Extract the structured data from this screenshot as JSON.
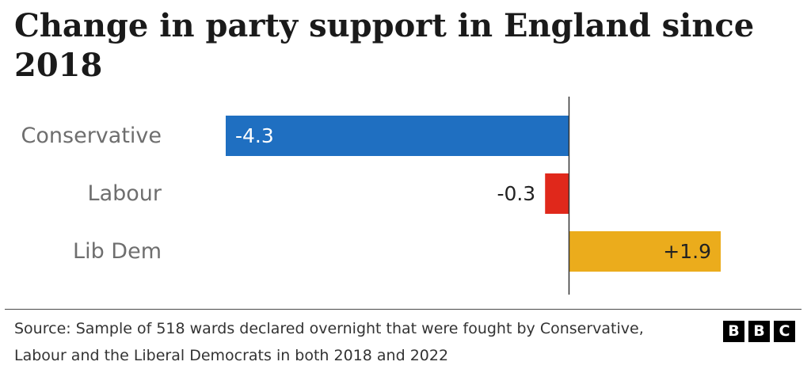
{
  "header": {
    "title": "Change in party support in England since 2018"
  },
  "chart_data": {
    "type": "bar",
    "orientation": "horizontal",
    "categories": [
      "Conservative",
      "Labour",
      "Lib Dem"
    ],
    "values": [
      -4.3,
      -0.3,
      1.9
    ],
    "value_labels": [
      "-4.3",
      "-0.3",
      "+1.9"
    ],
    "colors": [
      "#1f6fc1",
      "#e0281b",
      "#ebac1c"
    ],
    "title": "Change in party support in England since 2018",
    "xlabel": "",
    "ylabel": "",
    "xlim": [
      -4.3,
      1.9
    ],
    "grid": false,
    "zero_line": true
  },
  "footer": {
    "source": "Source: Sample of 518 wards declared overnight that were fought by Conservative, Labour and the Liberal Democrats in both 2018 and 2022",
    "logo_letters": [
      "B",
      "B",
      "C"
    ]
  }
}
